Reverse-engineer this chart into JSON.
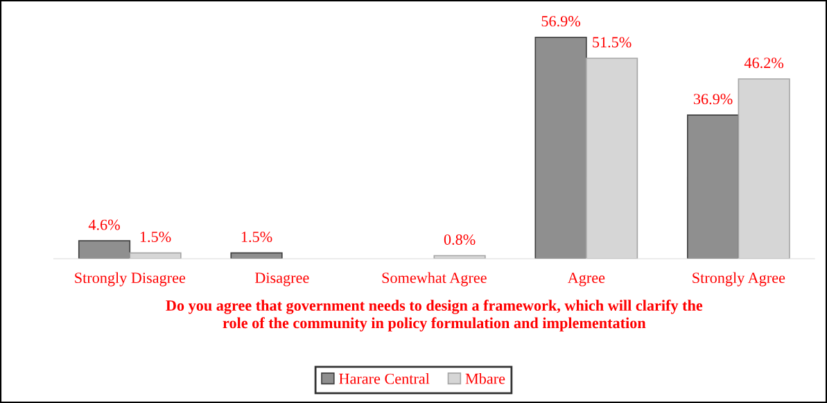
{
  "chart_data": {
    "type": "bar",
    "xlabel": "Do you agree that government needs to design a framework, which will clarify the\nrole of the community in policy formulation and implementation",
    "categories": [
      "Strongly Disagree",
      "Disagree",
      "Somewhat Agree",
      "Agree",
      "Strongly Agree"
    ],
    "series": [
      {
        "name": "Harare Central",
        "color": "#8f8f8f",
        "values": [
          4.6,
          1.5,
          null,
          56.9,
          36.9
        ],
        "value_labels": [
          "4.6%",
          "1.5%",
          null,
          "56.9%",
          "36.9%"
        ]
      },
      {
        "name": "Mbare",
        "color": "#d6d6d6",
        "values": [
          1.5,
          null,
          0.8,
          51.5,
          46.2
        ],
        "value_labels": [
          "1.5%",
          null,
          "0.8%",
          "51.5%",
          "46.2%"
        ]
      }
    ],
    "legend": "bottom",
    "grid": false
  }
}
